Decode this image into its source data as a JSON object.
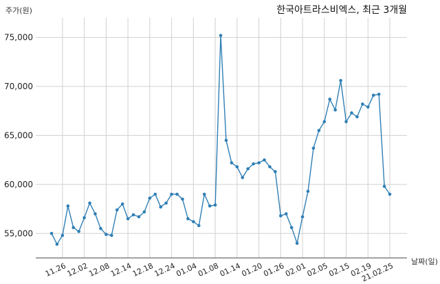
{
  "chart_data": {
    "type": "line",
    "title": "한국아트라스비엑스, 최근 3개월",
    "ylabel": "주가(원)",
    "xlabel": "날짜(일)",
    "ylim": [
      52500,
      77000
    ],
    "yticks": [
      55000,
      60000,
      65000,
      70000,
      75000
    ],
    "ytick_labels": [
      "55,000",
      "60,000",
      "65,000",
      "70,000",
      "75,000"
    ],
    "grid": true,
    "xtick_indices": [
      2,
      6,
      10,
      14,
      18,
      22,
      26,
      30,
      34,
      38,
      42,
      46,
      50,
      54,
      58,
      62
    ],
    "xtick_labels": [
      "11.26",
      "12.02",
      "12.08",
      "12.14",
      "12.18",
      "12.24",
      "01.04",
      "01.08",
      "01.14",
      "01.20",
      "01.26",
      "02.01",
      "02.05",
      "02.15",
      "02.19",
      "21.02.25"
    ],
    "values": [
      55000,
      53900,
      54800,
      57800,
      55600,
      55200,
      56600,
      58100,
      57000,
      55500,
      54900,
      54800,
      57400,
      58000,
      56500,
      56900,
      56700,
      57200,
      58600,
      59000,
      57700,
      58100,
      59000,
      59000,
      58500,
      56500,
      56200,
      55800,
      59000,
      57800,
      57900,
      75200,
      64500,
      62200,
      61800,
      60700,
      61600,
      62100,
      62200,
      62500,
      61800,
      61300,
      56800,
      57000,
      55600,
      54000,
      56700,
      59300,
      63700,
      65500,
      66400,
      68700,
      67600,
      70600,
      66400,
      67300,
      66900,
      68200,
      67900,
      69100,
      69200,
      59800,
      59000
    ]
  }
}
